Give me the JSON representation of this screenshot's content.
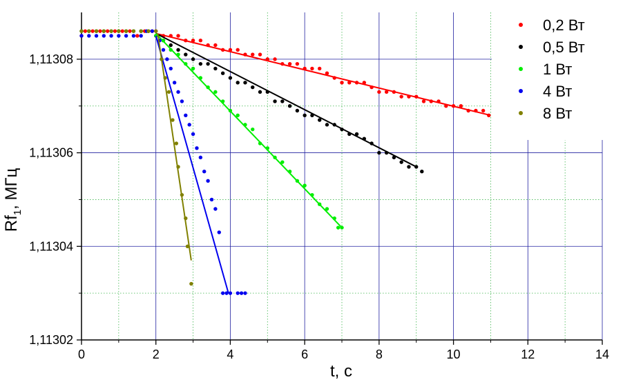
{
  "chart_data": {
    "type": "scatter",
    "xlabel": "t, c",
    "ylabel_main": "Rf",
    "ylabel_sub": "1",
    "ylabel_unit": ", МГц",
    "xlim": [
      0,
      14
    ],
    "ylim": [
      1.11302,
      1.11309
    ],
    "x_ticks": [
      0,
      2,
      4,
      6,
      8,
      10,
      12,
      14
    ],
    "x_tick_labels": [
      "0",
      "2",
      "4",
      "6",
      "8",
      "10",
      "12",
      "14"
    ],
    "y_ticks": [
      1.11302,
      1.11304,
      1.11306,
      1.11308
    ],
    "y_tick_labels": [
      "1,11302",
      "1,11304",
      "1,11306",
      "1,11308"
    ],
    "grid": true,
    "legend_position": "top-right",
    "series": [
      {
        "name": "0,2 Вт",
        "color": "#ff0000",
        "x": [
          0.0,
          0.1,
          0.3,
          0.5,
          0.7,
          0.9,
          1.1,
          1.3,
          1.5,
          1.7,
          1.9,
          2.0,
          2.2,
          2.4,
          2.6,
          2.8,
          3.0,
          3.2,
          3.4,
          3.6,
          3.8,
          4.0,
          4.2,
          4.4,
          4.6,
          4.8,
          5.0,
          5.2,
          5.4,
          5.6,
          5.8,
          6.0,
          6.2,
          6.4,
          6.6,
          6.8,
          7.0,
          7.2,
          7.4,
          7.6,
          7.8,
          8.0,
          8.2,
          8.4,
          8.6,
          8.8,
          9.0,
          9.2,
          9.4,
          9.6,
          9.8,
          10.0,
          10.2,
          10.4,
          10.6,
          10.8,
          10.95
        ],
        "y": [
          1.113085,
          1.113086,
          1.113086,
          1.113086,
          1.113086,
          1.113086,
          1.113086,
          1.113086,
          1.113085,
          1.113086,
          1.113086,
          1.113086,
          1.113085,
          1.113085,
          1.113085,
          1.113084,
          1.113084,
          1.113084,
          1.113083,
          1.113083,
          1.113082,
          1.113082,
          1.113082,
          1.113081,
          1.113081,
          1.113081,
          1.11308,
          1.11308,
          1.113079,
          1.113079,
          1.113079,
          1.113078,
          1.113078,
          1.113078,
          1.113077,
          1.113076,
          1.113075,
          1.113075,
          1.113075,
          1.113075,
          1.113074,
          1.113073,
          1.113073,
          1.113073,
          1.113072,
          1.113072,
          1.113072,
          1.113071,
          1.113071,
          1.113071,
          1.11307,
          1.11307,
          1.11307,
          1.113069,
          1.113069,
          1.113069,
          1.113068
        ],
        "fit": [
          [
            2.0,
            1.1130855
          ],
          [
            11.0,
            1.113068
          ]
        ]
      },
      {
        "name": "0,5 Вт",
        "color": "#000000",
        "x": [
          0.0,
          0.2,
          0.4,
          0.6,
          0.8,
          1.0,
          1.2,
          1.4,
          1.6,
          1.8,
          2.0,
          2.2,
          2.4,
          2.6,
          2.8,
          3.0,
          3.2,
          3.4,
          3.6,
          3.8,
          4.0,
          4.2,
          4.4,
          4.6,
          4.8,
          5.0,
          5.2,
          5.4,
          5.6,
          5.8,
          6.0,
          6.2,
          6.4,
          6.6,
          6.8,
          7.0,
          7.2,
          7.4,
          7.6,
          7.8,
          8.0,
          8.2,
          8.4,
          8.6,
          8.8,
          9.0,
          9.15
        ],
        "y": [
          1.113086,
          1.113086,
          1.113086,
          1.113086,
          1.113086,
          1.113086,
          1.113086,
          1.113086,
          1.113086,
          1.113086,
          1.113085,
          1.113084,
          1.113083,
          1.113082,
          1.113081,
          1.11308,
          1.113079,
          1.113079,
          1.113078,
          1.113077,
          1.113076,
          1.113075,
          1.113075,
          1.113074,
          1.113073,
          1.113073,
          1.113071,
          1.113071,
          1.11307,
          1.113069,
          1.113068,
          1.113068,
          1.113067,
          1.113066,
          1.113066,
          1.113065,
          1.113064,
          1.113064,
          1.113063,
          1.113062,
          1.11306,
          1.11306,
          1.113059,
          1.113058,
          1.113057,
          1.113057,
          1.113056
        ],
        "fit": [
          [
            2.0,
            1.1130855
          ],
          [
            9.0,
            1.113057
          ]
        ]
      },
      {
        "name": "1 Вт",
        "color": "#00ee00",
        "x": [
          0.0,
          0.2,
          0.4,
          0.6,
          0.8,
          1.0,
          1.2,
          1.4,
          1.6,
          1.8,
          2.0,
          2.2,
          2.4,
          2.6,
          2.8,
          3.0,
          3.2,
          3.4,
          3.6,
          3.8,
          4.0,
          4.2,
          4.4,
          4.6,
          4.8,
          5.0,
          5.2,
          5.4,
          5.6,
          5.8,
          6.0,
          6.2,
          6.4,
          6.6,
          6.8,
          6.9,
          7.0
        ],
        "y": [
          1.113086,
          1.113086,
          1.113086,
          1.113086,
          1.113086,
          1.113086,
          1.113086,
          1.113086,
          1.113086,
          1.113086,
          1.113085,
          1.113084,
          1.113082,
          1.113081,
          1.113079,
          1.113078,
          1.113076,
          1.113074,
          1.113073,
          1.113071,
          1.113069,
          1.113068,
          1.113066,
          1.113065,
          1.113062,
          1.113061,
          1.113059,
          1.113058,
          1.113056,
          1.113054,
          1.113053,
          1.113051,
          1.113049,
          1.113048,
          1.113046,
          1.113044,
          1.113044
        ],
        "fit": [
          [
            2.0,
            1.1130855
          ],
          [
            7.0,
            1.113044
          ]
        ]
      },
      {
        "name": "4 Вт",
        "color": "#0000ee",
        "x": [
          0.0,
          0.2,
          0.4,
          0.6,
          0.8,
          1.0,
          1.2,
          1.4,
          1.6,
          1.75,
          1.9,
          2.1,
          2.2,
          2.3,
          2.4,
          2.5,
          2.6,
          2.7,
          2.8,
          2.9,
          3.0,
          3.1,
          3.2,
          3.3,
          3.4,
          3.5,
          3.6,
          3.7,
          3.8,
          3.9,
          4.0,
          4.2,
          4.3,
          4.4
        ],
        "y": [
          1.113085,
          1.113085,
          1.113085,
          1.113085,
          1.113085,
          1.113085,
          1.113085,
          1.113085,
          1.113085,
          1.113086,
          1.113086,
          1.113084,
          1.113082,
          1.11308,
          1.113078,
          1.113075,
          1.113073,
          1.113071,
          1.113068,
          1.113066,
          1.113064,
          1.113061,
          1.113059,
          1.113056,
          1.113054,
          1.11305,
          1.113048,
          1.113043,
          1.11303,
          1.11303,
          1.11303,
          1.11303,
          1.11303,
          1.11303
        ],
        "fit": [
          [
            2.0,
            1.113085
          ],
          [
            3.95,
            1.11303
          ]
        ]
      },
      {
        "name": "8 Вт",
        "color": "#808000",
        "x": [
          0.0,
          0.2,
          0.4,
          0.6,
          0.8,
          1.0,
          1.2,
          1.4,
          1.6,
          1.8,
          2.0,
          2.15,
          2.25,
          2.35,
          2.45,
          2.55,
          2.6,
          2.7,
          2.8,
          2.85,
          2.95
        ],
        "y": [
          1.113086,
          1.113086,
          1.113086,
          1.113086,
          1.113086,
          1.113086,
          1.113086,
          1.113086,
          1.113086,
          1.113086,
          1.113086,
          1.11308,
          1.113076,
          1.113073,
          1.113067,
          1.113062,
          1.113057,
          1.113051,
          1.113046,
          1.11304,
          1.113032
        ],
        "fit": [
          [
            2.05,
            1.1130855
          ],
          [
            2.95,
            1.113037
          ]
        ]
      }
    ]
  }
}
